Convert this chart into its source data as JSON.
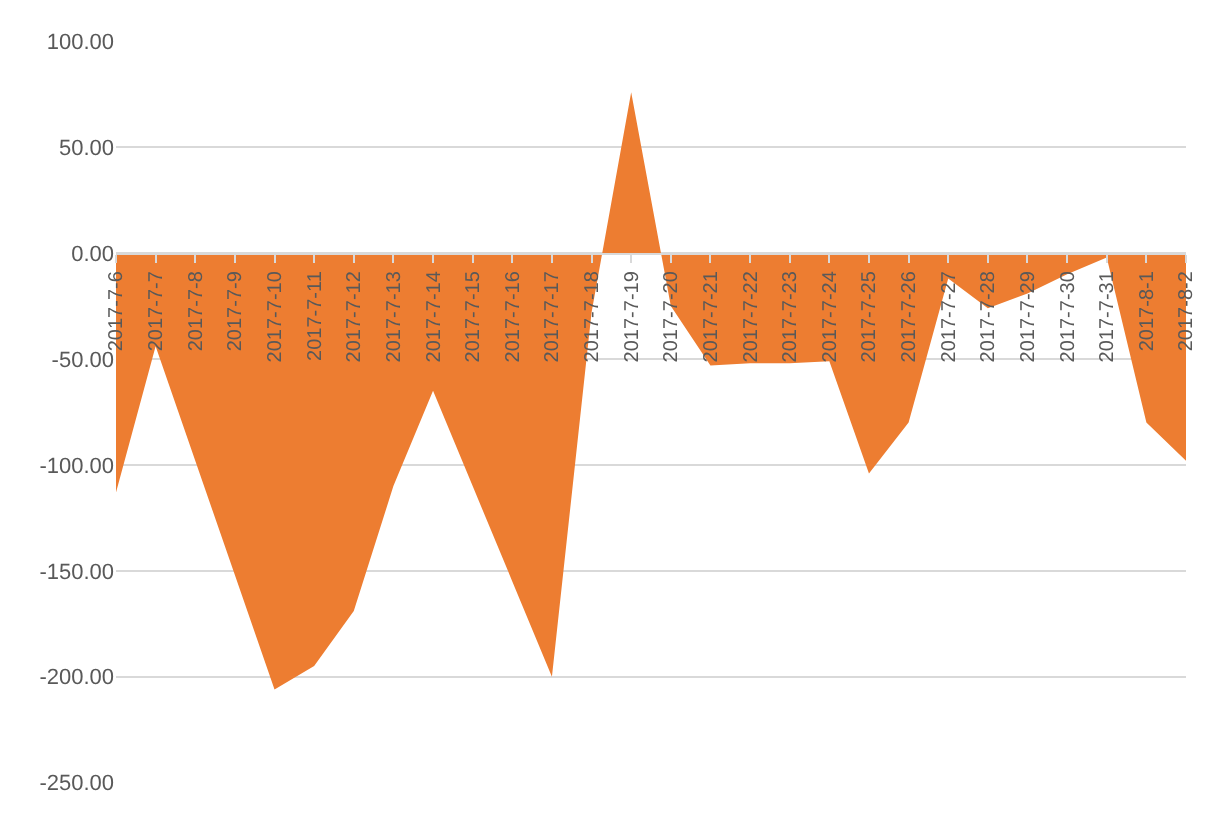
{
  "chart_data": {
    "type": "area",
    "categories": [
      "2017-7-6",
      "2017-7-7",
      "2017-7-8",
      "2017-7-9",
      "2017-7-10",
      "2017-7-11",
      "2017-7-12",
      "2017-7-13",
      "2017-7-14",
      "2017-7-15",
      "2017-7-16",
      "2017-7-17",
      "2017-7-18",
      "2017-7-19",
      "2017-7-20",
      "2017-7-21",
      "2017-7-22",
      "2017-7-23",
      "2017-7-24",
      "2017-7-25",
      "2017-7-26",
      "2017-7-27",
      "2017-7-28",
      "2017-7-29",
      "2017-7-30",
      "2017-7-31",
      "2017-8-1",
      "2017-8-2"
    ],
    "series": [
      {
        "color": "#ed7d31",
        "values": [
          -113,
          -44,
          -98,
          -152,
          -206,
          -195,
          -169,
          -110,
          -65,
          -110,
          -155,
          -200,
          -28,
          76,
          -25,
          -53,
          -52,
          -52,
          -51,
          -104,
          -80,
          -12,
          -26,
          -19,
          -10,
          -2,
          -80,
          -98
        ]
      }
    ],
    "ylim": [
      -250,
      100
    ],
    "yticks": [
      {
        "value": -250,
        "label": "-250.00"
      },
      {
        "value": -200,
        "label": "-200.00"
      },
      {
        "value": -150,
        "label": "-150.00"
      },
      {
        "value": -100,
        "label": "-100.00"
      },
      {
        "value": -50,
        "label": "-50.00"
      },
      {
        "value": 0,
        "label": "0.00"
      },
      {
        "value": 50,
        "label": "50.00"
      },
      {
        "value": 100,
        "label": "100.00"
      }
    ],
    "grid": "y"
  }
}
